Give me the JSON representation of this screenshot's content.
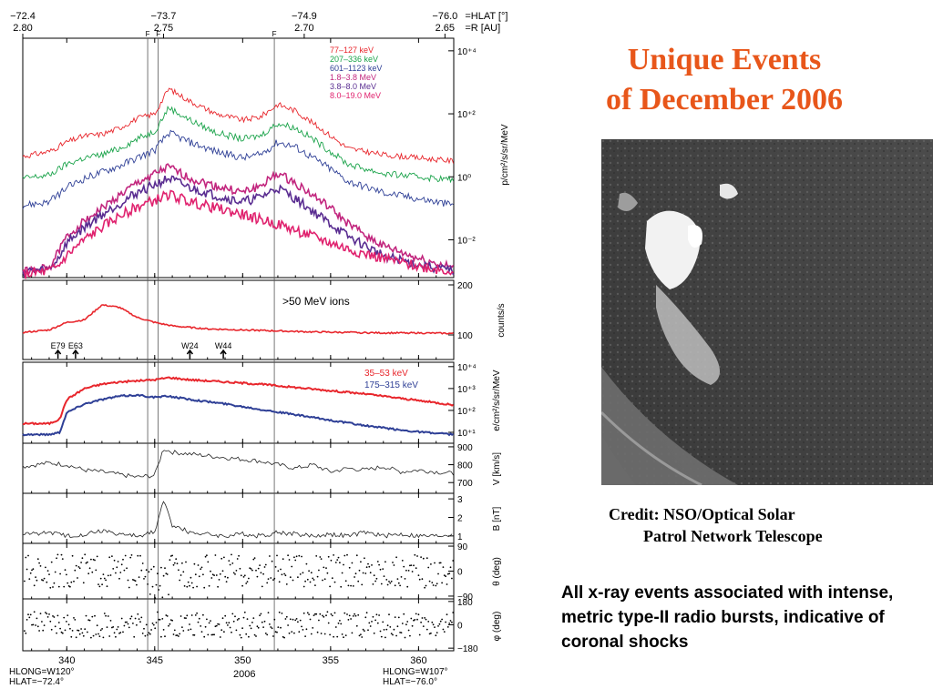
{
  "slide": {
    "title_line1": "Unique Events",
    "title_line2": "of December 2006",
    "credit_line1": "Credit: NSO/Optical Solar",
    "credit_line2": "Patrol Network Telescope",
    "note": "All x-ray events associated with intense, metric type-II radio bursts, indicative of coronal shocks"
  },
  "chart_data": [
    {
      "panel": "top-axis",
      "type": "table",
      "ticks": [
        {
          "doy": 337.5,
          "hlat": "−72.4",
          "r": "2.80"
        },
        {
          "doy": 345.5,
          "hlat": "−73.7",
          "r": "2.75"
        },
        {
          "doy": 353.5,
          "hlat": "−74.9",
          "r": "2.70"
        },
        {
          "doy": 361.5,
          "hlat": "−76.0",
          "r": "2.65"
        }
      ],
      "hlat_label": "=HLAT [°]",
      "r_label": "=R [AU]",
      "shock_marker": "F",
      "shock_days": [
        344.6,
        345.2,
        351.8
      ]
    },
    {
      "panel": "protons",
      "type": "line",
      "ylabel": "p/cm²/s/sr/MeV",
      "yscale": "log",
      "yticks": [
        "10⁻²",
        "10⁰",
        "10⁺²",
        "10⁺⁴"
      ],
      "ylim_exp": [
        -3.2,
        4.4
      ],
      "series": [
        {
          "name": "77–127 keV",
          "color": "#e8262c",
          "x": [
            337.5,
            339,
            340,
            341,
            342,
            343,
            344,
            345,
            345.8,
            347,
            348.5,
            350,
            351,
            352,
            353,
            354,
            355,
            356,
            358,
            360,
            362
          ],
          "y": [
            0.65,
            0.8,
            1.1,
            1.3,
            1.35,
            1.55,
            1.85,
            2.0,
            2.8,
            2.4,
            2.0,
            1.8,
            1.9,
            2.3,
            2.1,
            1.7,
            1.3,
            0.9,
            0.7,
            0.6,
            0.5
          ]
        },
        {
          "name": "207–336 keV",
          "color": "#1aa34a",
          "x": [
            337.5,
            339,
            340,
            341,
            342,
            343,
            344,
            345,
            345.8,
            347,
            348.5,
            350,
            351,
            352,
            353,
            354,
            355,
            356,
            358,
            360,
            362
          ],
          "y": [
            -0.05,
            0.05,
            0.4,
            0.6,
            0.7,
            0.9,
            1.2,
            1.45,
            2.2,
            1.8,
            1.4,
            1.2,
            1.3,
            1.7,
            1.55,
            1.2,
            0.8,
            0.4,
            0.1,
            0.0,
            -0.1
          ]
        },
        {
          "name": "601–1123 keV",
          "color": "#2e3f96",
          "x": [
            337.5,
            339,
            340,
            341,
            342,
            343,
            344,
            345,
            345.8,
            347,
            348.5,
            350,
            351,
            352,
            353,
            354,
            355,
            356,
            358,
            360,
            362
          ],
          "y": [
            -0.9,
            -0.8,
            -0.35,
            -0.05,
            0.15,
            0.35,
            0.6,
            0.85,
            1.4,
            1.1,
            0.8,
            0.6,
            0.7,
            1.1,
            0.95,
            0.6,
            0.25,
            -0.15,
            -0.5,
            -0.7,
            -0.9
          ]
        },
        {
          "name": "1.8–3.8 MeV",
          "color": "#c2267e",
          "x": [
            337.5,
            339,
            339.5,
            340,
            341,
            342,
            343,
            344,
            345,
            345.8,
            347,
            348.5,
            350,
            351,
            352,
            353,
            354,
            355,
            356,
            358,
            360,
            362
          ],
          "y": [
            -3.0,
            -2.9,
            -2.4,
            -1.9,
            -1.4,
            -1.0,
            -0.6,
            -0.2,
            0.1,
            0.3,
            -0.05,
            -0.3,
            -0.5,
            -0.3,
            0.1,
            -0.2,
            -0.6,
            -1.0,
            -1.5,
            -2.2,
            -2.6,
            -2.9
          ]
        },
        {
          "name": "3.8–8.0 MeV",
          "color": "#5a2d91",
          "x": [
            337.5,
            339,
            339.5,
            340,
            341,
            342,
            343,
            344,
            345,
            345.8,
            347,
            348.5,
            350,
            351,
            352,
            353,
            354,
            355,
            356,
            358,
            360,
            362
          ],
          "y": [
            -3.0,
            -2.95,
            -2.6,
            -2.1,
            -1.6,
            -1.2,
            -0.85,
            -0.5,
            -0.25,
            -0.05,
            -0.35,
            -0.6,
            -0.8,
            -0.65,
            -0.35,
            -0.7,
            -1.1,
            -1.5,
            -1.9,
            -2.5,
            -2.8,
            -3.0
          ]
        },
        {
          "name": "8.0–19.0 MeV",
          "color": "#e0226e",
          "x": [
            337.5,
            339,
            339.5,
            340,
            341,
            342,
            343,
            344,
            345,
            345.8,
            347,
            348.5,
            350,
            351,
            352,
            353,
            354,
            355,
            356,
            358,
            360,
            362
          ],
          "y": [
            -3.1,
            -3.0,
            -2.85,
            -2.5,
            -2.0,
            -1.6,
            -1.25,
            -0.95,
            -0.75,
            -0.55,
            -0.8,
            -1.0,
            -1.2,
            -1.35,
            -1.5,
            -1.7,
            -1.9,
            -2.1,
            -2.3,
            -2.6,
            -2.85,
            -3.0
          ]
        }
      ]
    },
    {
      "panel": "ions",
      "type": "line",
      "ylabel": "counts/s",
      "yticks": [
        "100",
        "200"
      ],
      "annotation": ">50 MeV ions",
      "series": [
        {
          "color": "#e8262c",
          "x": [
            337.5,
            339,
            340,
            341,
            342,
            343,
            344,
            345,
            346,
            348,
            350,
            352,
            354,
            356,
            358,
            360,
            362
          ],
          "y": [
            105,
            110,
            125,
            130,
            160,
            155,
            135,
            125,
            118,
            112,
            110,
            108,
            106,
            105,
            104,
            104,
            103
          ]
        }
      ],
      "events": [
        "E79",
        "E63",
        "W24",
        "W44"
      ],
      "event_days": [
        339.5,
        340.5,
        347.0,
        348.9
      ]
    },
    {
      "panel": "electrons",
      "type": "line",
      "ylabel": "e/cm²/s/sr/MeV",
      "yscale": "log",
      "yticks": [
        "10⁺¹",
        "10⁺²",
        "10⁺³",
        "10⁺⁴"
      ],
      "ylim_exp": [
        0.5,
        4.2
      ],
      "series": [
        {
          "name": "35–53 keV",
          "color": "#e8262c",
          "x": [
            337.5,
            339,
            339.6,
            340,
            341,
            342,
            343,
            344,
            345,
            345.8,
            347,
            349,
            351,
            353,
            355,
            357,
            359,
            361,
            362
          ],
          "y": [
            1.4,
            1.4,
            1.6,
            2.5,
            3.0,
            3.2,
            3.3,
            3.35,
            3.4,
            3.5,
            3.4,
            3.3,
            3.2,
            3.05,
            2.9,
            2.75,
            2.55,
            2.35,
            2.25
          ]
        },
        {
          "name": "175–315 keV",
          "color": "#2e3f96",
          "x": [
            337.5,
            339,
            339.6,
            340,
            341,
            342,
            343,
            344,
            345,
            345.8,
            347,
            349,
            351,
            353,
            355,
            357,
            359,
            361,
            362
          ],
          "y": [
            0.9,
            0.9,
            1.0,
            1.9,
            2.3,
            2.5,
            2.65,
            2.7,
            2.6,
            2.65,
            2.5,
            2.3,
            2.05,
            1.8,
            1.55,
            1.3,
            1.1,
            0.95,
            0.9
          ]
        }
      ]
    },
    {
      "panel": "velocity",
      "type": "line",
      "ylabel": "V [km/s]",
      "yticks": [
        "700",
        "800",
        "900"
      ],
      "ylim": [
        640,
        920
      ],
      "series": [
        {
          "color": "#222222",
          "x": [
            337.5,
            339,
            340,
            341,
            342,
            343,
            344,
            345,
            345.5,
            346,
            347,
            348,
            349,
            350,
            351,
            352,
            353,
            354,
            355,
            356,
            357,
            358,
            359,
            360,
            361,
            362
          ],
          "y": [
            790,
            810,
            800,
            770,
            760,
            745,
            730,
            740,
            890,
            870,
            860,
            850,
            840,
            830,
            820,
            800,
            780,
            800,
            760,
            780,
            770,
            790,
            760,
            770,
            760,
            750
          ]
        }
      ]
    },
    {
      "panel": "field",
      "type": "line",
      "ylabel": "B [nT]",
      "yticks": [
        "1",
        "2",
        "3"
      ],
      "ylim": [
        0.6,
        3.3
      ],
      "series": [
        {
          "color": "#222222",
          "x": [
            337.5,
            339,
            340,
            341,
            342,
            343,
            344,
            345,
            345.5,
            346,
            347,
            348,
            349,
            350,
            351,
            352,
            353,
            354,
            355,
            356,
            357,
            358,
            359,
            360,
            361,
            362
          ],
          "y": [
            1.1,
            1.2,
            1.0,
            1.1,
            1.3,
            1.1,
            1.0,
            1.2,
            2.9,
            1.6,
            1.2,
            1.1,
            1.0,
            1.1,
            1.0,
            1.2,
            1.1,
            1.0,
            1.1,
            1.0,
            1.2,
            1.0,
            1.1,
            1.0,
            1.0,
            1.1
          ]
        }
      ]
    },
    {
      "panel": "theta",
      "type": "scatter",
      "ylabel": "θ (deg)",
      "yticks": [
        "90",
        "0",
        "−90"
      ],
      "ylim": [
        -100,
        100
      ]
    },
    {
      "panel": "phi",
      "type": "scatter",
      "ylabel": "φ (deg)",
      "yticks": [
        "180",
        "0",
        "−180"
      ],
      "ylim": [
        -200,
        200
      ]
    },
    {
      "panel": "x-axis",
      "type": "table",
      "xticks": [
        "340",
        "345",
        "350",
        "355",
        "360"
      ],
      "xtick_values": [
        340,
        345,
        350,
        355,
        360
      ],
      "xlim": [
        337.5,
        362
      ],
      "xlabel": "2006",
      "left_label_1": "HLONG=W120°",
      "left_label_2": "HLAT=−72.4°",
      "right_label_1": "HLONG=W107°",
      "right_label_2": "HLAT=−76.0°"
    }
  ]
}
